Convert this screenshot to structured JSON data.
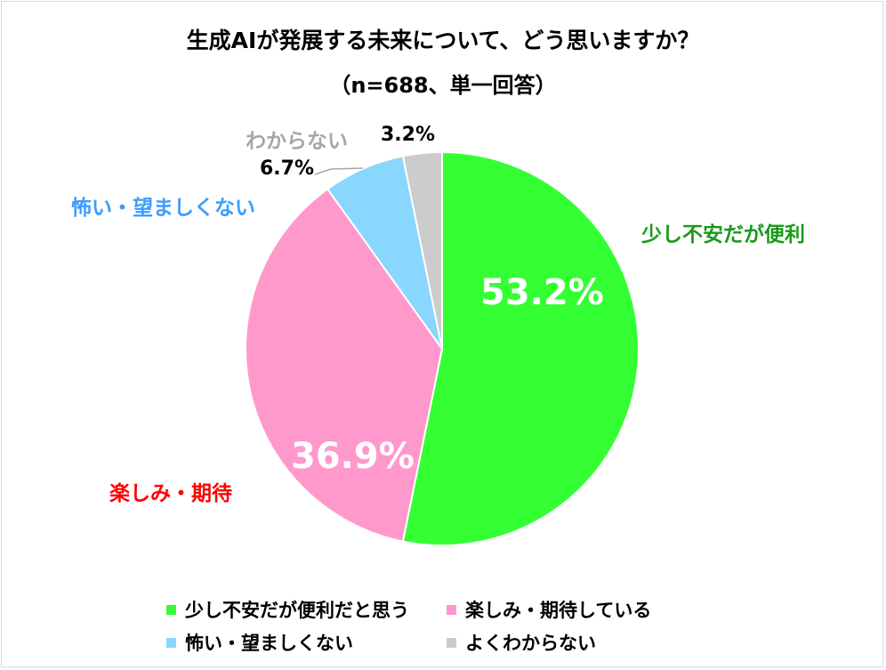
{
  "title": "生成AIが発展する未来について、どう思いますか？",
  "subtitle": "（n=688、単一回答）",
  "chart_data": {
    "type": "pie",
    "series": [
      {
        "name": "少し不安だが便利だと思う",
        "short_label": "少し不安だが便利",
        "value": 53.2,
        "label": "53.2%",
        "color": "#33ff33",
        "label_color": "#1a9a1a"
      },
      {
        "name": "楽しみ・期待している",
        "short_label": "楽しみ・期待",
        "value": 36.9,
        "label": "36.9%",
        "color": "#ff99cc",
        "label_color": "#ff0000"
      },
      {
        "name": "怖い・望ましくない",
        "short_label": "怖い・望ましくない",
        "value": 6.7,
        "label": "6.7%",
        "color": "#89d6ff",
        "label_color": "#3d9cff"
      },
      {
        "name": "よくわからない",
        "short_label": "わからない",
        "value": 3.2,
        "label": "3.2%",
        "color": "#cccccc",
        "label_color": "#a6a6a6"
      }
    ],
    "legend_position": "bottom"
  }
}
